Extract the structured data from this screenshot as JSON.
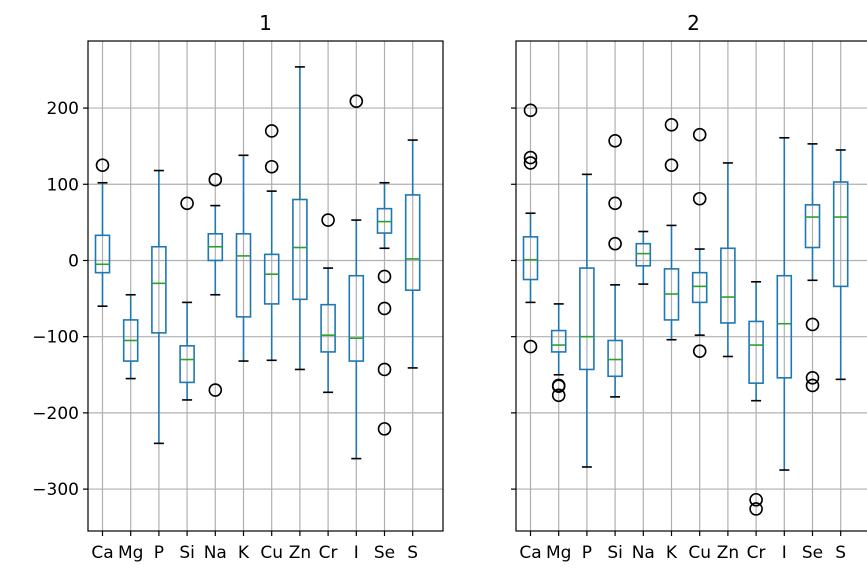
{
  "chart_data": [
    {
      "type": "box",
      "title": "1",
      "categories": [
        "Ca",
        "Mg",
        "P",
        "Si",
        "Na",
        "K",
        "Cu",
        "Zn",
        "Cr",
        "I",
        "Se",
        "S"
      ],
      "ylim": [
        -355,
        288
      ],
      "yticks": [
        200,
        100,
        0,
        -100,
        -200,
        -300
      ],
      "ytick_labels": [
        "200",
        "100",
        "0",
        "−100",
        "−200",
        "−300"
      ],
      "grid": true,
      "boxes": [
        {
          "whisker_low": -60,
          "q1": -16,
          "median": -5,
          "q3": 33,
          "whisker_high": 102,
          "outliers": [
            125
          ]
        },
        {
          "whisker_low": -155,
          "q1": -132,
          "median": -105,
          "q3": -78,
          "whisker_high": -45,
          "outliers": []
        },
        {
          "whisker_low": -240,
          "q1": -95,
          "median": -30,
          "q3": 18,
          "whisker_high": 118,
          "outliers": []
        },
        {
          "whisker_low": -183,
          "q1": -160,
          "median": -130,
          "q3": -112,
          "whisker_high": -55,
          "outliers": [
            75
          ]
        },
        {
          "whisker_low": -45,
          "q1": 0,
          "median": 18,
          "q3": 35,
          "whisker_high": 72,
          "outliers": [
            106,
            -170
          ]
        },
        {
          "whisker_low": -132,
          "q1": -74,
          "median": 6,
          "q3": 35,
          "whisker_high": 138,
          "outliers": []
        },
        {
          "whisker_low": -131,
          "q1": -57,
          "median": -18,
          "q3": 8,
          "whisker_high": 91,
          "outliers": [
            123,
            170
          ]
        },
        {
          "whisker_low": -143,
          "q1": -51,
          "median": 17,
          "q3": 80,
          "whisker_high": 254,
          "outliers": []
        },
        {
          "whisker_low": -173,
          "q1": -120,
          "median": -98,
          "q3": -58,
          "whisker_high": -10,
          "outliers": [
            53
          ]
        },
        {
          "whisker_low": -260,
          "q1": -132,
          "median": -102,
          "q3": -20,
          "whisker_high": 53,
          "outliers": [
            209
          ]
        },
        {
          "whisker_low": 16,
          "q1": 36,
          "median": 51,
          "q3": 68,
          "whisker_high": 102,
          "outliers": [
            -21,
            -63,
            -143,
            -221
          ]
        },
        {
          "whisker_low": -141,
          "q1": -39,
          "median": 2,
          "q3": 86,
          "whisker_high": 158,
          "outliers": []
        }
      ]
    },
    {
      "type": "box",
      "title": "2",
      "categories": [
        "Ca",
        "Mg",
        "P",
        "Si",
        "Na",
        "K",
        "Cu",
        "Zn",
        "Cr",
        "I",
        "Se",
        "S"
      ],
      "ylim": [
        -355,
        288
      ],
      "yticks": [
        200,
        100,
        0,
        -100,
        -200,
        -300
      ],
      "grid": true,
      "boxes": [
        {
          "whisker_low": -55,
          "q1": -25,
          "median": 1,
          "q3": 31,
          "whisker_high": 62,
          "outliers": [
            197,
            135,
            128,
            -113
          ]
        },
        {
          "whisker_low": -150,
          "q1": -120,
          "median": -111,
          "q3": -92,
          "whisker_high": -57,
          "outliers": [
            -164,
            -165,
            -177
          ]
        },
        {
          "whisker_low": -271,
          "q1": -143,
          "median": -100,
          "q3": -10,
          "whisker_high": 113,
          "outliers": []
        },
        {
          "whisker_low": -179,
          "q1": -152,
          "median": -130,
          "q3": -105,
          "whisker_high": -32,
          "outliers": [
            157,
            75,
            22
          ]
        },
        {
          "whisker_low": -31,
          "q1": -7,
          "median": 9,
          "q3": 22,
          "whisker_high": 38,
          "outliers": []
        },
        {
          "whisker_low": -104,
          "q1": -78,
          "median": -44,
          "q3": -11,
          "whisker_high": 46,
          "outliers": [
            178,
            125
          ]
        },
        {
          "whisker_low": -98,
          "q1": -55,
          "median": -34,
          "q3": -16,
          "whisker_high": 15,
          "outliers": [
            165,
            81,
            -119
          ]
        },
        {
          "whisker_low": -126,
          "q1": -82,
          "median": -48,
          "q3": 16,
          "whisker_high": 128,
          "outliers": []
        },
        {
          "whisker_low": -184,
          "q1": -161,
          "median": -111,
          "q3": -80,
          "whisker_high": -28,
          "outliers": [
            -314,
            -326
          ]
        },
        {
          "whisker_low": -275,
          "q1": -154,
          "median": -83,
          "q3": -20,
          "whisker_high": 161,
          "outliers": []
        },
        {
          "whisker_low": -26,
          "q1": 17,
          "median": 57,
          "q3": 73,
          "whisker_high": 153,
          "outliers": [
            -84,
            -154,
            -164
          ]
        },
        {
          "whisker_low": -156,
          "q1": -34,
          "median": 57,
          "q3": 103,
          "whisker_high": 145,
          "outliers": []
        }
      ]
    }
  ],
  "colors": {
    "box": "#1f77b4",
    "median": "#2ca02c",
    "grid": "#b0b0b0",
    "outlier": "#000000",
    "axes": "#000000"
  }
}
